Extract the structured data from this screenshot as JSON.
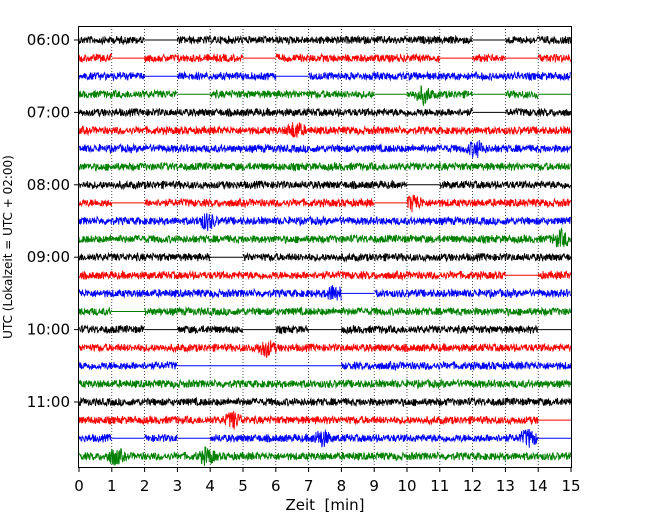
{
  "chart_data": {
    "type": "helicorder",
    "xlabel": "Zeit  [min]",
    "ylabel": "UTC (Lokalzeit = UTC + 02:00)",
    "xlim": [
      0,
      15
    ],
    "x_ticks": [
      0,
      1,
      2,
      3,
      4,
      5,
      6,
      7,
      8,
      9,
      10,
      11,
      12,
      13,
      14,
      15
    ],
    "y_tick_labels": [
      "06:00",
      "07:00",
      "08:00",
      "09:00",
      "10:00",
      "11:00"
    ],
    "lines_per_hour": 4,
    "minutes_per_line": 15,
    "start_time": "06:00",
    "grid": "vertical dotted lines at each minute",
    "colors": [
      "#000000",
      "#ff0000",
      "#0000ff",
      "#008000"
    ],
    "traces": [
      {
        "start": "06:00",
        "color": "#000000",
        "gaps": [
          [
            2.0,
            3.0
          ],
          [
            12.0,
            13.0
          ]
        ],
        "events": []
      },
      {
        "start": "06:15",
        "color": "#ff0000",
        "gaps": [
          [
            1.0,
            2.0
          ],
          [
            5.0,
            6.0
          ],
          [
            11.0,
            12.0
          ],
          [
            13.0,
            14.0
          ]
        ],
        "events": []
      },
      {
        "start": "06:30",
        "color": "#0000ff",
        "gaps": [
          [
            2.0,
            3.0
          ],
          [
            6.0,
            7.0
          ]
        ],
        "events": []
      },
      {
        "start": "06:45",
        "color": "#008000",
        "gaps": [
          [
            3.0,
            4.0
          ],
          [
            9.0,
            10.0
          ],
          [
            12.0,
            13.0
          ],
          [
            14.0,
            15.0
          ]
        ],
        "events": [
          10.5
        ]
      },
      {
        "start": "07:00",
        "color": "#000000",
        "gaps": [
          [
            12.0,
            13.0
          ]
        ],
        "events": []
      },
      {
        "start": "07:15",
        "color": "#ff0000",
        "gaps": [],
        "events": [
          6.6
        ]
      },
      {
        "start": "07:30",
        "color": "#0000ff",
        "gaps": [],
        "events": [
          12.1
        ]
      },
      {
        "start": "07:45",
        "color": "#008000",
        "gaps": [],
        "events": []
      },
      {
        "start": "08:00",
        "color": "#000000",
        "gaps": [
          [
            10.0,
            11.0
          ]
        ],
        "events": []
      },
      {
        "start": "08:15",
        "color": "#ff0000",
        "gaps": [
          [
            1.0,
            2.0
          ],
          [
            9.0,
            10.0
          ]
        ],
        "events": [
          10.2
        ]
      },
      {
        "start": "08:30",
        "color": "#0000ff",
        "gaps": [],
        "events": [
          3.9
        ]
      },
      {
        "start": "08:45",
        "color": "#008000",
        "gaps": [],
        "events": [
          14.7
        ]
      },
      {
        "start": "09:00",
        "color": "#000000",
        "gaps": [
          [
            4.0,
            5.0
          ]
        ],
        "events": []
      },
      {
        "start": "09:15",
        "color": "#ff0000",
        "gaps": [
          [
            13.0,
            14.0
          ]
        ],
        "events": []
      },
      {
        "start": "09:30",
        "color": "#0000ff",
        "gaps": [
          [
            8.0,
            9.0
          ]
        ],
        "events": [
          7.8
        ]
      },
      {
        "start": "09:45",
        "color": "#008000",
        "gaps": [
          [
            1.0,
            2.0
          ]
        ],
        "events": []
      },
      {
        "start": "10:00",
        "color": "#000000",
        "gaps": [
          [
            2.0,
            3.0
          ],
          [
            5.0,
            6.0
          ],
          [
            7.0,
            8.0
          ],
          [
            14.0,
            15.0
          ]
        ],
        "events": []
      },
      {
        "start": "10:15",
        "color": "#ff0000",
        "gaps": [],
        "events": [
          5.7
        ]
      },
      {
        "start": "10:30",
        "color": "#0000ff",
        "gaps": [
          [
            3.0,
            8.0
          ]
        ],
        "events": []
      },
      {
        "start": "10:45",
        "color": "#008000",
        "gaps": [],
        "events": []
      },
      {
        "start": "11:00",
        "color": "#000000",
        "gaps": [],
        "events": []
      },
      {
        "start": "11:15",
        "color": "#ff0000",
        "gaps": [
          [
            14.0,
            15.0
          ]
        ],
        "events": [
          4.7
        ]
      },
      {
        "start": "11:30",
        "color": "#0000ff",
        "gaps": [
          [
            1.0,
            2.0
          ],
          [
            3.0,
            4.0
          ],
          [
            14.0,
            15.0
          ]
        ],
        "events": [
          7.4,
          13.7
        ]
      },
      {
        "start": "11:45",
        "color": "#008000",
        "gaps": [],
        "events": [
          1.1,
          3.9
        ]
      }
    ]
  }
}
